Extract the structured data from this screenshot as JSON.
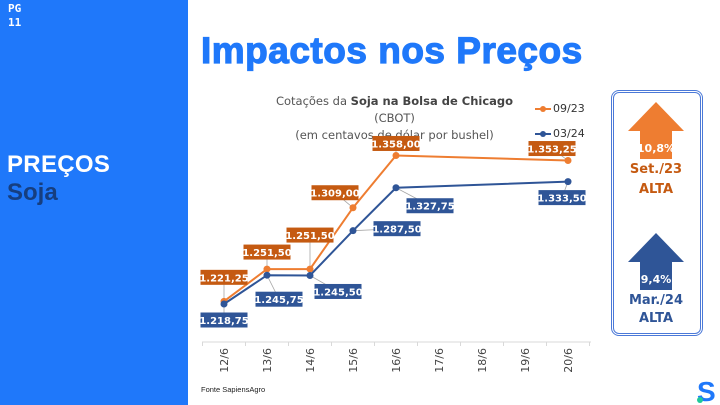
{
  "sidebar": {
    "page_label": "PG",
    "page_number": "11",
    "section_title": "PREÇOS",
    "section_subtitle": "Soja"
  },
  "header": {
    "title": "Impactos nos Preços"
  },
  "chart_data": {
    "type": "line",
    "title_line1_prefix": "Cotações da ",
    "title_line1_bold": "Soja na Bolsa de Chicago",
    "title_line1_suffix": " (CBOT)",
    "title_line2": "(em centavos de dólar por bushel)",
    "xlabel": "",
    "ylabel": "",
    "categories": [
      "12/6",
      "13/6",
      "14/6",
      "15/6",
      "16/6",
      "17/6",
      "18/6",
      "19/6",
      "20/6"
    ],
    "ylim": [
      1200,
      1380
    ],
    "grid": false,
    "legend_position": "top-right",
    "series": [
      {
        "name": "09/23",
        "color": "#ee7d31",
        "label_bg": "#c55a11",
        "values": [
          1221.25,
          1251.5,
          1251.5,
          1309.0,
          1358.0,
          null,
          null,
          null,
          1353.25
        ],
        "labels": [
          "1.221,25",
          "1.251,50",
          "1.251,50",
          "1.309,00",
          "1.358,00",
          null,
          null,
          null,
          "1.353,25"
        ]
      },
      {
        "name": "03/24",
        "color": "#2f5597",
        "label_bg": "#2f5597",
        "values": [
          1218.75,
          1245.75,
          1245.5,
          1287.5,
          1327.75,
          null,
          null,
          null,
          1333.5
        ],
        "labels": [
          "1.218,75",
          "1.245,75",
          "1.245,50",
          "1.287,50",
          "1.327,75",
          null,
          null,
          null,
          "1.333,50"
        ]
      }
    ]
  },
  "source": "Fonte SapiensAgro",
  "kpis": [
    {
      "value": "10,8%",
      "period": "Set./23",
      "status": "ALTA",
      "color": "#ee7d31",
      "text_color": "#c55a11"
    },
    {
      "value": "9,4%",
      "period": "Mar./24",
      "status": "ALTA",
      "color": "#2f5597",
      "text_color": "#2f5597"
    }
  ],
  "brand": {
    "logo_letter": "S",
    "logo_color": "#1f78fa",
    "logo_dot_color": "#1fc99a"
  }
}
